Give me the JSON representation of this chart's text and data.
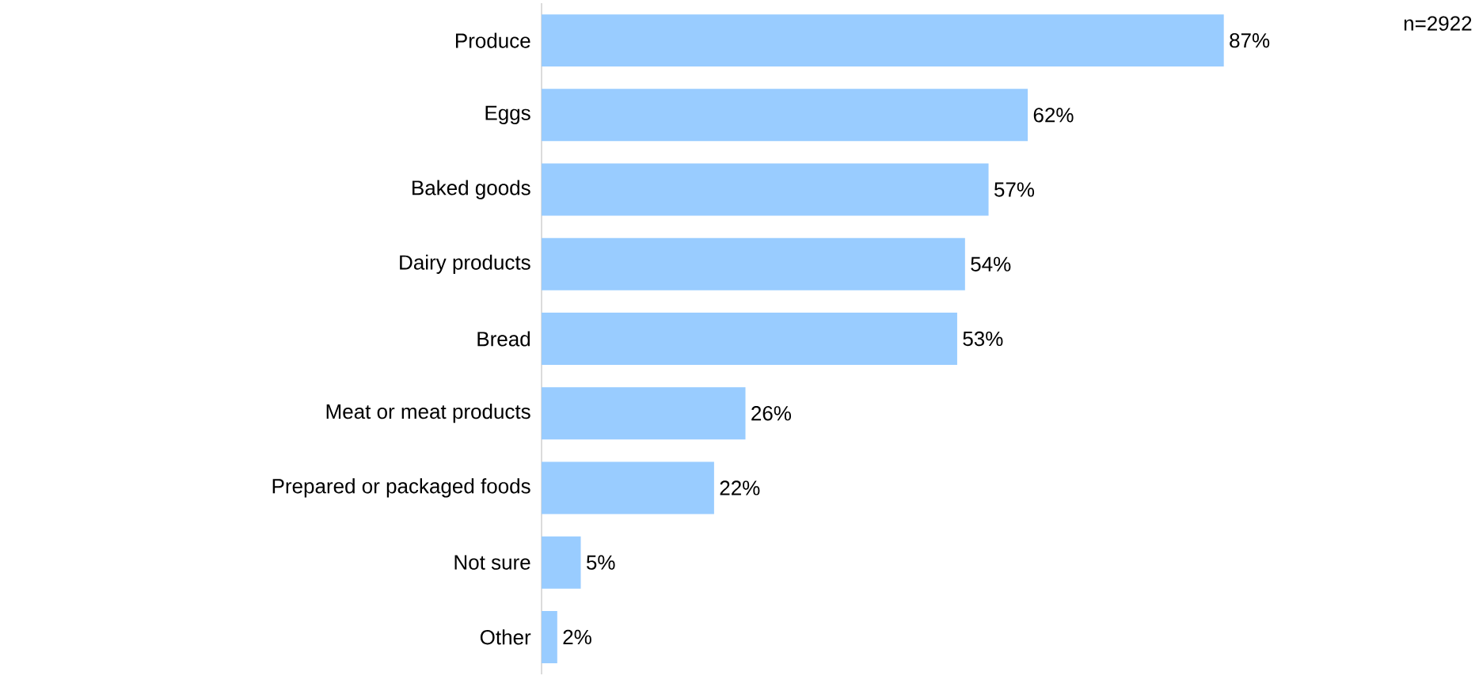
{
  "chart_data": {
    "type": "bar",
    "orientation": "horizontal",
    "categories": [
      "Produce",
      "Eggs",
      "Baked goods",
      "Dairy products",
      "Bread",
      "Meat or meat products",
      "Prepared or packaged foods",
      "Not sure",
      "Other"
    ],
    "values": [
      87,
      62,
      57,
      54,
      53,
      26,
      22,
      5,
      2
    ],
    "value_labels": [
      "87%",
      "62%",
      "57%",
      "54%",
      "53%",
      "26%",
      "22%",
      "5%",
      "2%"
    ],
    "color": "#99ccff",
    "annotations": [
      "n=2922"
    ]
  }
}
